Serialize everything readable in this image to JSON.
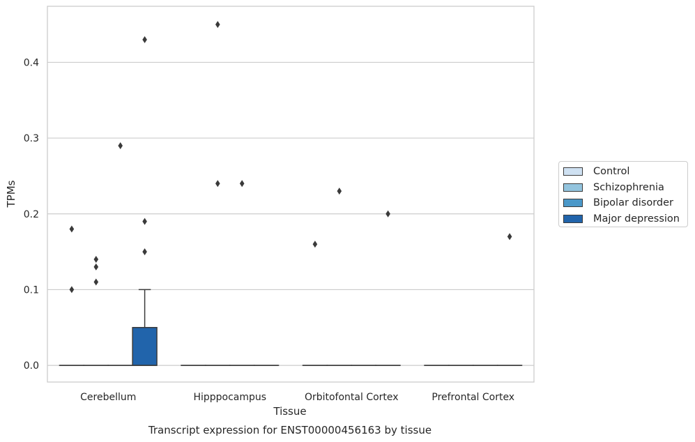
{
  "chart_data": {
    "type": "box",
    "title": "Transcript expression for ENST00000456163 by tissue",
    "xlabel": "Tissue",
    "ylabel": "TPMs",
    "categories": [
      "Cerebellum",
      "Hipppocampus",
      "Orbitofontal Cortex",
      "Prefrontal Cortex"
    ],
    "ylim": [
      -0.022,
      0.474
    ],
    "yticks": [
      0.0,
      0.1,
      0.2,
      0.3,
      0.4
    ],
    "ytick_labels": [
      "0.0",
      "0.1",
      "0.2",
      "0.3",
      "0.4"
    ],
    "grid": "horizontal",
    "legend_position": "right",
    "series": [
      {
        "name": "Control",
        "color": "#cfe1f2",
        "boxes": [
          {
            "category": "Cerebellum",
            "q1": 0,
            "median": 0,
            "q3": 0,
            "whisker_low": 0,
            "whisker_high": 0,
            "outliers": [
              0.18,
              0.1
            ]
          },
          {
            "category": "Hipppocampus",
            "q1": 0,
            "median": 0,
            "q3": 0,
            "whisker_low": 0,
            "whisker_high": 0,
            "outliers": []
          },
          {
            "category": "Orbitofontal Cortex",
            "q1": 0,
            "median": 0,
            "q3": 0,
            "whisker_low": 0,
            "whisker_high": 0,
            "outliers": [
              0.16
            ]
          },
          {
            "category": "Prefrontal Cortex",
            "q1": 0,
            "median": 0,
            "q3": 0,
            "whisker_low": 0,
            "whisker_high": 0,
            "outliers": []
          }
        ]
      },
      {
        "name": "Schizophrenia",
        "color": "#93c4de",
        "boxes": [
          {
            "category": "Cerebellum",
            "q1": 0,
            "median": 0,
            "q3": 0,
            "whisker_low": 0,
            "whisker_high": 0,
            "outliers": [
              0.14,
              0.13,
              0.11
            ]
          },
          {
            "category": "Hipppocampus",
            "q1": 0,
            "median": 0,
            "q3": 0,
            "whisker_low": 0,
            "whisker_high": 0,
            "outliers": [
              0.45,
              0.24
            ]
          },
          {
            "category": "Orbitofontal Cortex",
            "q1": 0,
            "median": 0,
            "q3": 0,
            "whisker_low": 0,
            "whisker_high": 0,
            "outliers": [
              0.23
            ]
          },
          {
            "category": "Prefrontal Cortex",
            "q1": 0,
            "median": 0,
            "q3": 0,
            "whisker_low": 0,
            "whisker_high": 0,
            "outliers": []
          }
        ]
      },
      {
        "name": "Bipolar disorder",
        "color": "#4a98c9",
        "boxes": [
          {
            "category": "Cerebellum",
            "q1": 0,
            "median": 0,
            "q3": 0,
            "whisker_low": 0,
            "whisker_high": 0,
            "outliers": [
              0.29
            ]
          },
          {
            "category": "Hipppocampus",
            "q1": 0,
            "median": 0,
            "q3": 0,
            "whisker_low": 0,
            "whisker_high": 0,
            "outliers": [
              0.24
            ]
          },
          {
            "category": "Orbitofontal Cortex",
            "q1": 0,
            "median": 0,
            "q3": 0,
            "whisker_low": 0,
            "whisker_high": 0,
            "outliers": []
          },
          {
            "category": "Prefrontal Cortex",
            "q1": 0,
            "median": 0,
            "q3": 0,
            "whisker_low": 0,
            "whisker_high": 0,
            "outliers": []
          }
        ]
      },
      {
        "name": "Major depression",
        "color": "#2164ab",
        "boxes": [
          {
            "category": "Cerebellum",
            "q1": 0,
            "median": 0,
            "q3": 0.05,
            "whisker_low": 0,
            "whisker_high": 0.1,
            "outliers": [
              0.43,
              0.19,
              0.15
            ]
          },
          {
            "category": "Hipppocampus",
            "q1": 0,
            "median": 0,
            "q3": 0,
            "whisker_low": 0,
            "whisker_high": 0,
            "outliers": []
          },
          {
            "category": "Orbitofontal Cortex",
            "q1": 0,
            "median": 0,
            "q3": 0,
            "whisker_low": 0,
            "whisker_high": 0,
            "outliers": [
              0.2
            ]
          },
          {
            "category": "Prefrontal Cortex",
            "q1": 0,
            "median": 0,
            "q3": 0,
            "whisker_low": 0,
            "whisker_high": 0,
            "outliers": [
              0.17
            ]
          }
        ]
      }
    ]
  }
}
